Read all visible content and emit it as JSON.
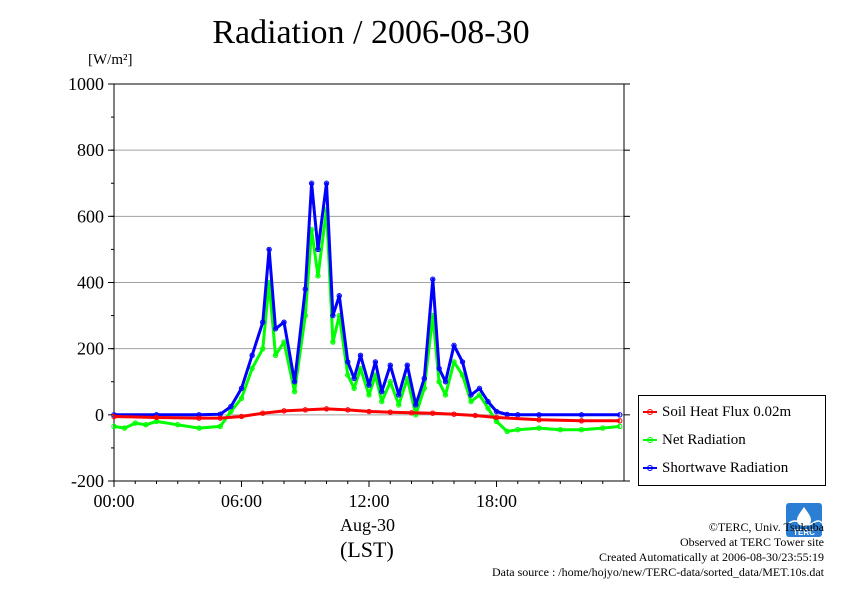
{
  "title": "Radiation / 2006-08-30",
  "ylabel_unit": "[W/m²]",
  "x_date_label": "Aug-30",
  "x_tz_label": "(LST)",
  "legend": [
    {
      "label": "Soil Heat Flux 0.02m",
      "color": "#ff0000"
    },
    {
      "label": "Net Radiation",
      "color": "#00ff00"
    },
    {
      "label": "Shortwave Radiation",
      "color": "#0000ff"
    }
  ],
  "credits": {
    "line1": "©TERC, Univ. Tsukuba",
    "line2": "Observed at TERC Tower site",
    "line3": "Created Automatically at 2006-08-30/23:55:19",
    "line4": "Data source : /home/hojyo/new/TERC-data/sorted_data/MET.10s.dat"
  },
  "logo_text": "TERC",
  "chart_data": {
    "type": "line",
    "title": "Radiation / 2006-08-30",
    "ylabel": "[W/m²]",
    "xlabel": "Aug-30 (LST)",
    "xlim": [
      0,
      24
    ],
    "ylim": [
      -200,
      1000
    ],
    "x_ticks": [
      0,
      6,
      12,
      18
    ],
    "x_tick_labels": [
      "00:00",
      "06:00",
      "12:00",
      "18:00"
    ],
    "y_ticks": [
      -200,
      0,
      200,
      400,
      600,
      800,
      1000
    ],
    "y_tick_labels": [
      "-200",
      "0",
      "200",
      "400",
      "600",
      "800",
      "1000"
    ],
    "grid": true,
    "legend_position": "right-outside",
    "series": [
      {
        "name": "Soil Heat Flux 0.02m",
        "color": "#ff0000",
        "x": [
          0,
          2,
          4,
          5,
          6,
          7,
          8,
          9,
          10,
          11,
          12,
          13,
          14,
          15,
          16,
          17,
          18,
          20,
          22,
          23.8
        ],
        "y": [
          -5,
          -8,
          -10,
          -10,
          -5,
          5,
          12,
          15,
          18,
          15,
          10,
          8,
          6,
          5,
          2,
          -2,
          -8,
          -15,
          -18,
          -18
        ]
      },
      {
        "name": "Net Radiation",
        "color": "#00ff00",
        "x": [
          0,
          0.5,
          1,
          1.5,
          2,
          3,
          4,
          5,
          5.5,
          6,
          6.5,
          7,
          7.3,
          7.6,
          8,
          8.5,
          9,
          9.3,
          9.6,
          10,
          10.3,
          10.6,
          11,
          11.3,
          11.6,
          12,
          12.3,
          12.6,
          13,
          13.4,
          13.8,
          14.2,
          14.6,
          15,
          15.3,
          15.6,
          16,
          16.4,
          16.8,
          17.2,
          17.6,
          18,
          18.5,
          19,
          20,
          21,
          22,
          23,
          23.8
        ],
        "y": [
          -35,
          -40,
          -25,
          -30,
          -20,
          -30,
          -40,
          -35,
          10,
          50,
          140,
          200,
          400,
          180,
          220,
          70,
          300,
          560,
          420,
          620,
          220,
          300,
          120,
          80,
          140,
          60,
          120,
          40,
          100,
          30,
          110,
          0,
          80,
          300,
          100,
          60,
          160,
          120,
          40,
          60,
          20,
          -20,
          -50,
          -45,
          -40,
          -45,
          -45,
          -40,
          -35
        ]
      },
      {
        "name": "Shortwave Radiation",
        "color": "#0000ff",
        "x": [
          0,
          2,
          4,
          5,
          5.5,
          6,
          6.5,
          7,
          7.3,
          7.6,
          8,
          8.5,
          9,
          9.3,
          9.6,
          10,
          10.3,
          10.6,
          11,
          11.3,
          11.6,
          12,
          12.3,
          12.6,
          13,
          13.4,
          13.8,
          14.2,
          14.6,
          15,
          15.3,
          15.6,
          16,
          16.4,
          16.8,
          17.2,
          17.6,
          18,
          18.5,
          19,
          20,
          22,
          23.8
        ],
        "y": [
          0,
          0,
          0,
          2,
          25,
          80,
          180,
          280,
          500,
          260,
          280,
          100,
          380,
          700,
          500,
          700,
          300,
          360,
          160,
          110,
          180,
          90,
          160,
          70,
          150,
          60,
          150,
          30,
          110,
          410,
          140,
          100,
          210,
          160,
          60,
          80,
          40,
          10,
          1,
          0,
          0,
          0,
          0
        ]
      }
    ]
  }
}
